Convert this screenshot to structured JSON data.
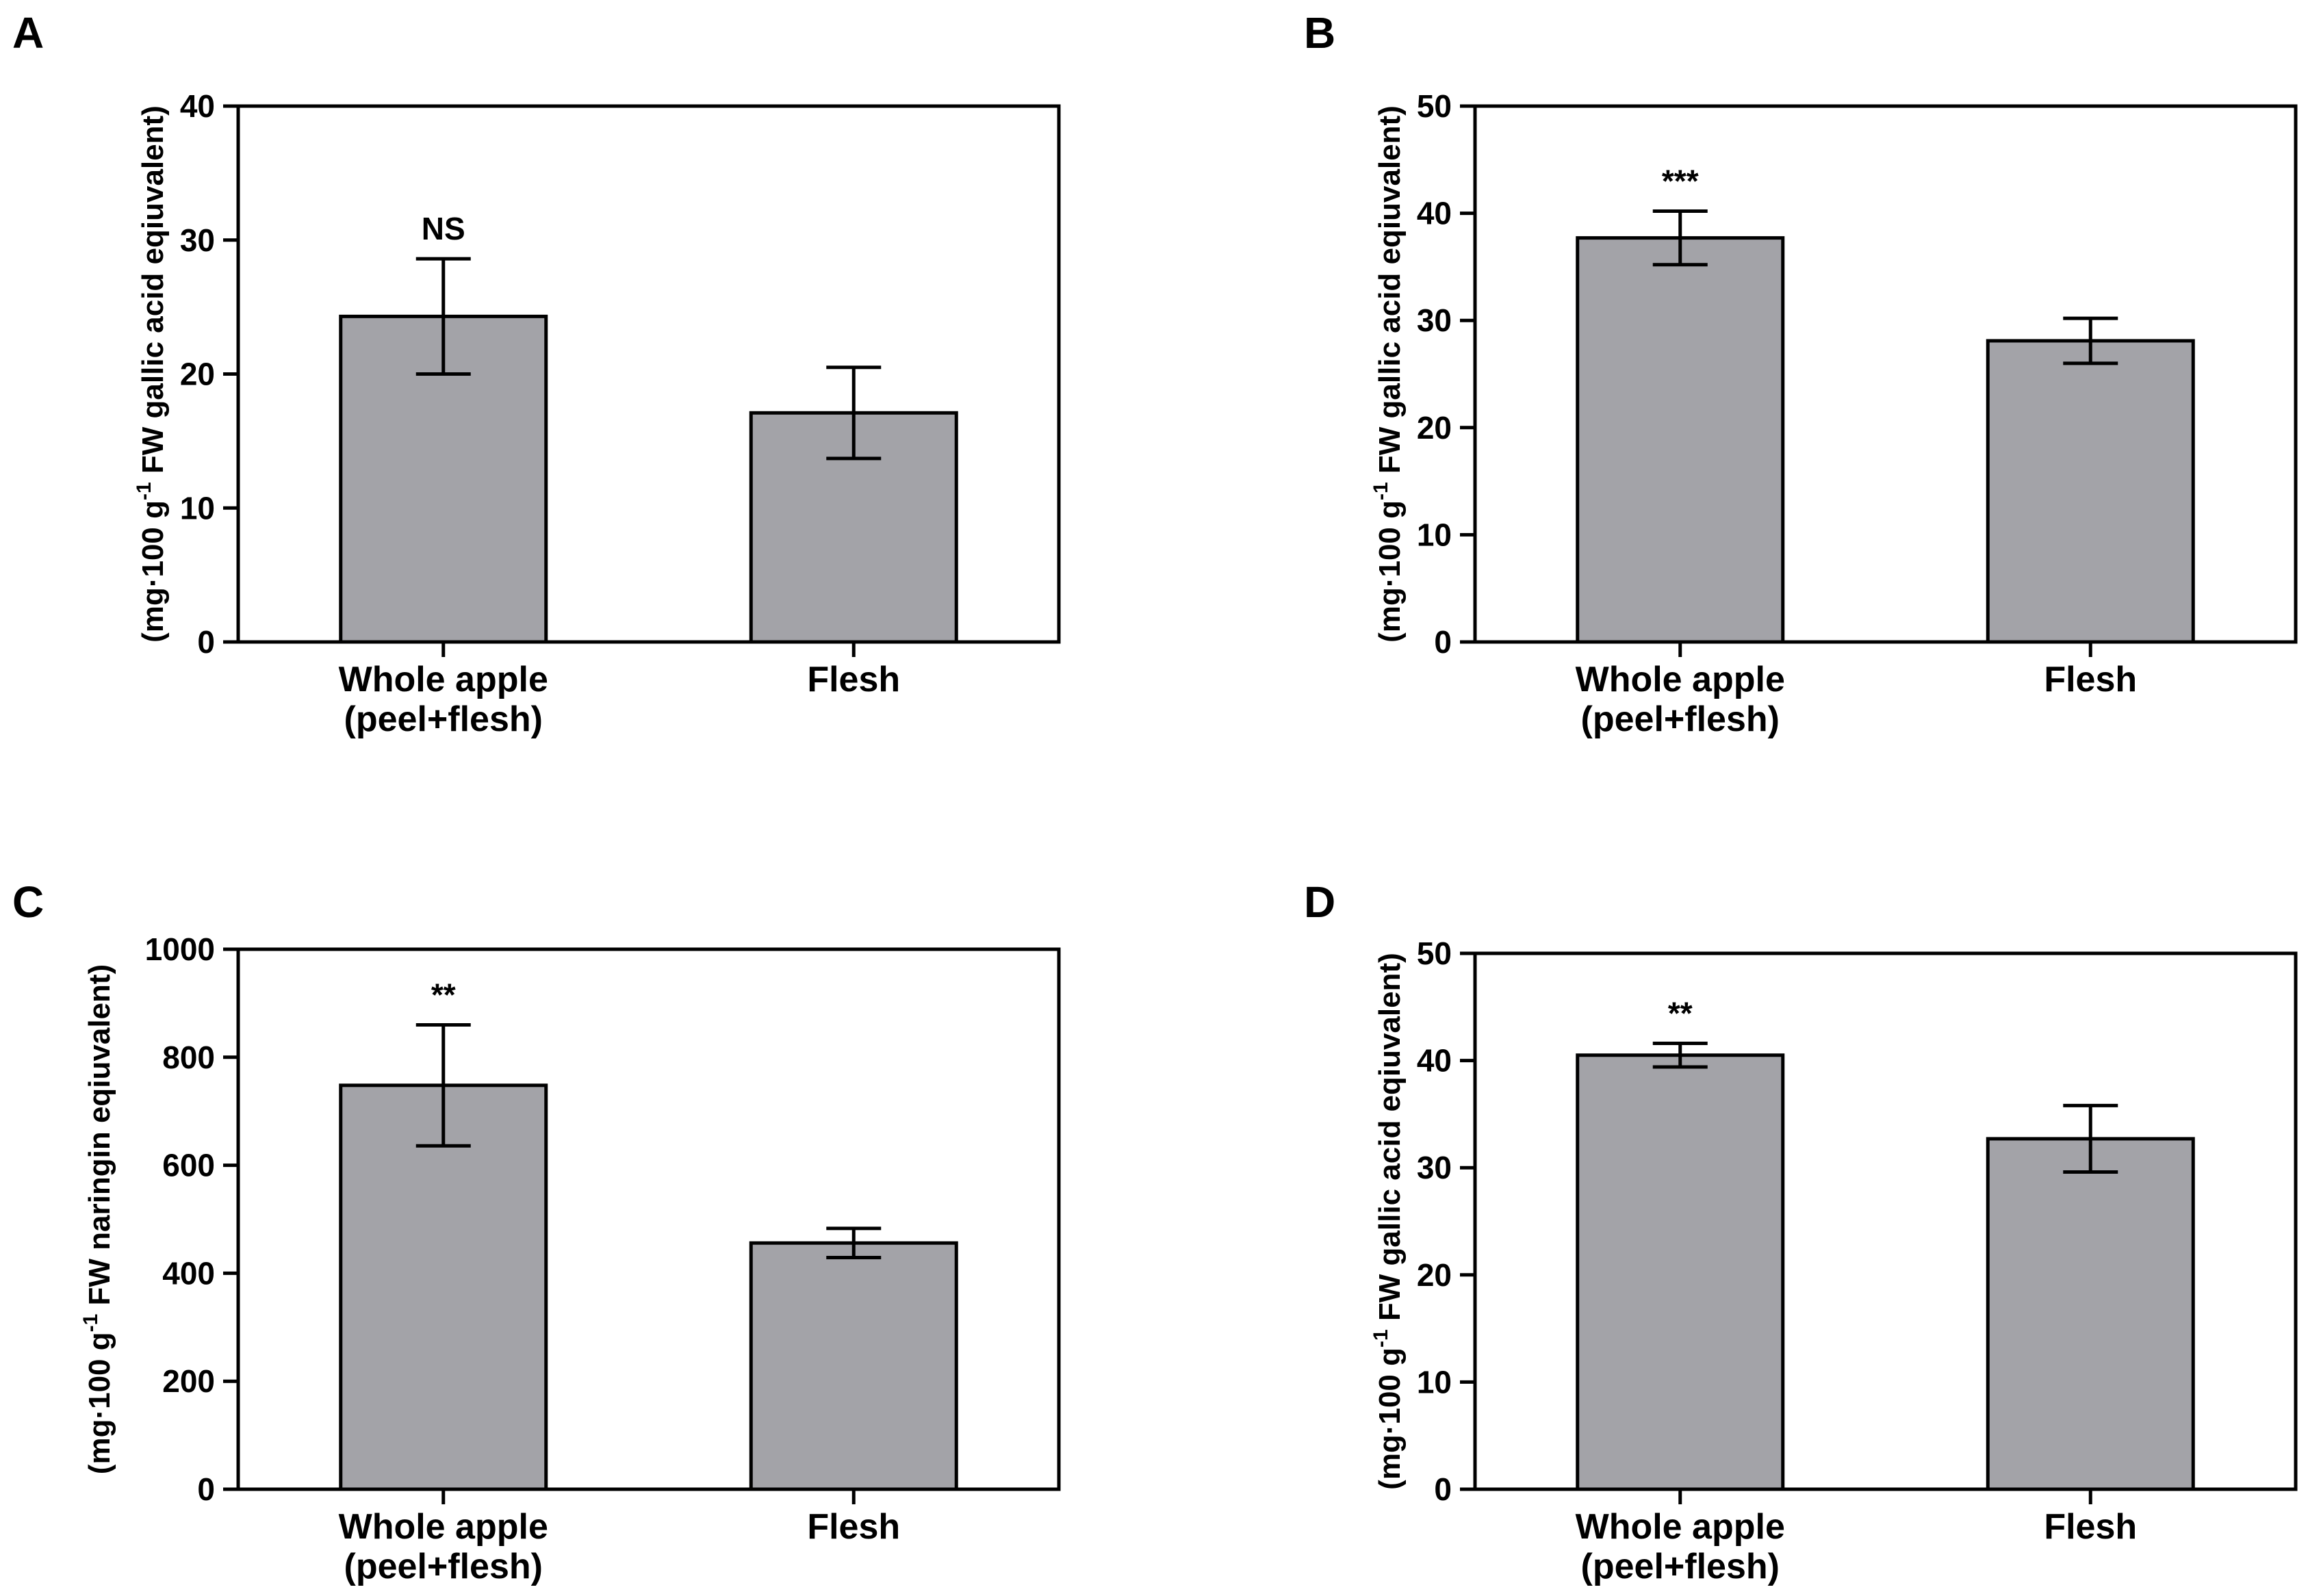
{
  "colors": {
    "bar_fill": "#a3a3a8",
    "stroke": "#000000",
    "background": "#ffffff"
  },
  "chart_data": [
    {
      "panel": "A",
      "type": "bar",
      "categories": [
        [
          "Whole apple",
          "(peel+flesh)"
        ],
        [
          "Flesh"
        ]
      ],
      "values": [
        24.3,
        17.1
      ],
      "errors": [
        4.3,
        3.4
      ],
      "significance": [
        "NS",
        ""
      ],
      "ylim": [
        0,
        40
      ],
      "yticks": [
        0,
        10,
        20,
        30,
        40
      ],
      "ylabel": {
        "pre": "(mg·100 g",
        "sup": "-1",
        "post": " FW gallic acid eqiuvalent)"
      },
      "xlabel": "",
      "title": ""
    },
    {
      "panel": "B",
      "type": "bar",
      "categories": [
        [
          "Whole apple",
          "(peel+flesh)"
        ],
        [
          "Flesh"
        ]
      ],
      "values": [
        37.7,
        28.1
      ],
      "errors": [
        2.5,
        2.1
      ],
      "significance": [
        "***",
        ""
      ],
      "ylim": [
        0,
        50
      ],
      "yticks": [
        0,
        10,
        20,
        30,
        40,
        50
      ],
      "ylabel": {
        "pre": "(mg·100 g",
        "sup": "-1",
        "post": " FW gallic acid eqiuvalent)"
      },
      "xlabel": "",
      "title": ""
    },
    {
      "panel": "C",
      "type": "bar",
      "categories": [
        [
          "Whole apple",
          "(peel+flesh)"
        ],
        [
          "Flesh"
        ]
      ],
      "values": [
        748,
        456
      ],
      "errors": [
        112,
        27
      ],
      "significance": [
        "**",
        ""
      ],
      "ylim": [
        0,
        1000
      ],
      "yticks": [
        0,
        200,
        400,
        600,
        800,
        1000
      ],
      "ylabel": {
        "pre": "(mg·100 g",
        "sup": "-1",
        "post": " FW naringin eqiuvalent)"
      },
      "xlabel": "",
      "title": ""
    },
    {
      "panel": "D",
      "type": "bar",
      "categories": [
        [
          "Whole apple",
          "(peel+flesh)"
        ],
        [
          "Flesh"
        ]
      ],
      "values": [
        40.5,
        32.7
      ],
      "errors": [
        1.1,
        3.1
      ],
      "significance": [
        "**",
        ""
      ],
      "ylim": [
        0,
        50
      ],
      "yticks": [
        0,
        10,
        20,
        30,
        40,
        50
      ],
      "ylabel": {
        "pre": "(mg·100 g",
        "sup": "-1",
        "post": " FW gallic acid eqiuvalent)"
      },
      "xlabel": "",
      "title": ""
    }
  ]
}
